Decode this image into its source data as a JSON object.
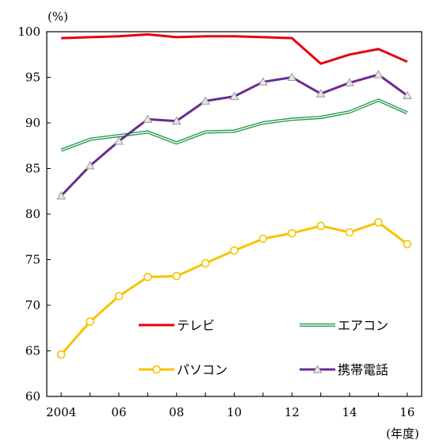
{
  "chart_data": {
    "type": "line",
    "y_unit_label": "(%)",
    "x_unit_label": "(年度)",
    "x": [
      2004,
      2005,
      2006,
      2007,
      2008,
      2009,
      2010,
      2011,
      2012,
      2013,
      2014,
      2015,
      2016
    ],
    "x_tick_labels": [
      {
        "x": 2004,
        "label": "2004"
      },
      {
        "x": 2006,
        "label": "06"
      },
      {
        "x": 2008,
        "label": "08"
      },
      {
        "x": 2010,
        "label": "10"
      },
      {
        "x": 2012,
        "label": "12"
      },
      {
        "x": 2014,
        "label": "14"
      },
      {
        "x": 2016,
        "label": "16"
      }
    ],
    "ylim": [
      60,
      100
    ],
    "xlim": [
      2003.5,
      2016.5
    ],
    "y_ticks": [
      60,
      65,
      70,
      75,
      80,
      85,
      90,
      95,
      100
    ],
    "grid": false,
    "legend_position": "bottom-right",
    "series": [
      {
        "name": "テレビ",
        "color": "#e60012",
        "style": "solid",
        "marker": "none",
        "values": [
          99.3,
          99.4,
          99.5,
          99.7,
          99.4,
          99.5,
          99.5,
          99.4,
          99.3,
          96.5,
          97.5,
          98.1,
          96.7
        ]
      },
      {
        "name": "エアコン",
        "color": "#1a9641",
        "style": "double",
        "marker": "none",
        "values": [
          87.0,
          88.2,
          88.6,
          89.0,
          87.8,
          89.0,
          89.1,
          90.0,
          90.4,
          90.6,
          91.2,
          92.5,
          91.1
        ]
      },
      {
        "name": "パソコン",
        "color": "#f5c400",
        "style": "solid",
        "marker": "circle",
        "values": [
          64.6,
          68.2,
          71.0,
          73.1,
          73.2,
          74.6,
          76.0,
          77.3,
          77.9,
          78.7,
          78.0,
          79.1,
          76.7
        ]
      },
      {
        "name": "携帯電話",
        "color": "#6a2c91",
        "style": "solid",
        "marker": "triangle",
        "values": [
          82.0,
          85.3,
          88.0,
          90.4,
          90.2,
          92.4,
          92.9,
          94.5,
          95.0,
          93.2,
          94.4,
          95.3,
          93.0
        ]
      }
    ]
  }
}
